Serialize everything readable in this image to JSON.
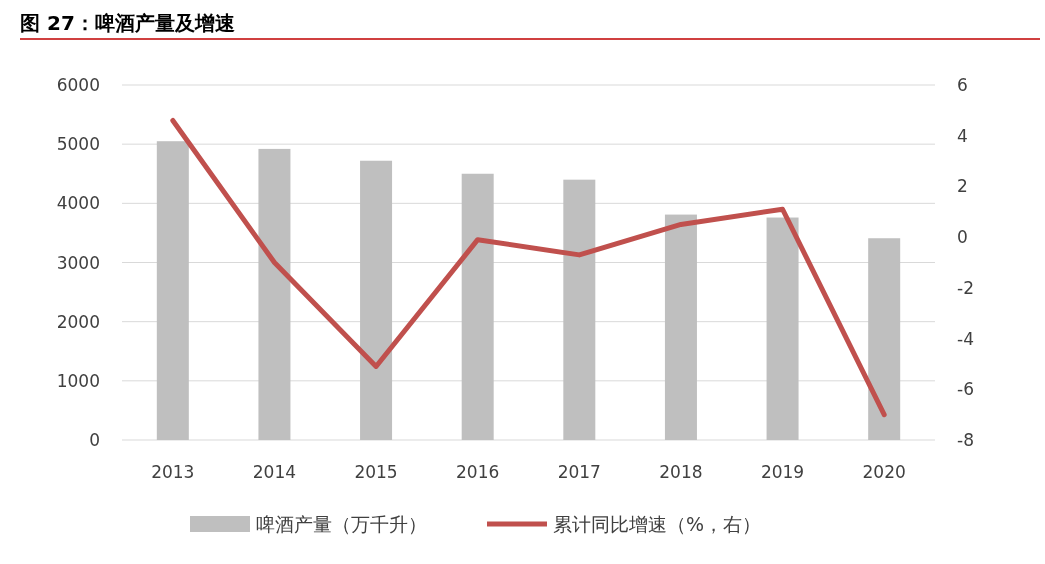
{
  "chart_data": {
    "type": "bar",
    "title": "图 27：啤酒产量及增速",
    "categories": [
      "2013",
      "2014",
      "2015",
      "2016",
      "2017",
      "2018",
      "2019",
      "2020"
    ],
    "series": [
      {
        "name": "啤酒产量（万千升）",
        "color": "#bfbfbf",
        "values": [
          5050,
          4920,
          4720,
          4500,
          4400,
          3810,
          3760,
          3410
        ]
      },
      {
        "name": "累计同比增速（%，右）",
        "type": "line",
        "axis": "y2",
        "color": "#c0504d",
        "values": [
          4.6,
          -1.0,
          -5.1,
          -0.1,
          -0.7,
          0.5,
          1.1,
          -7.0
        ]
      }
    ],
    "ylim": [
      0,
      6000
    ],
    "yticks": [
      0,
      1000,
      2000,
      3000,
      4000,
      5000,
      6000
    ],
    "y2lim": [
      -8,
      6
    ],
    "y2ticks": [
      -8,
      -6,
      -4,
      -2,
      0,
      2,
      4,
      6
    ],
    "grid": "y",
    "legend": "bottom"
  }
}
